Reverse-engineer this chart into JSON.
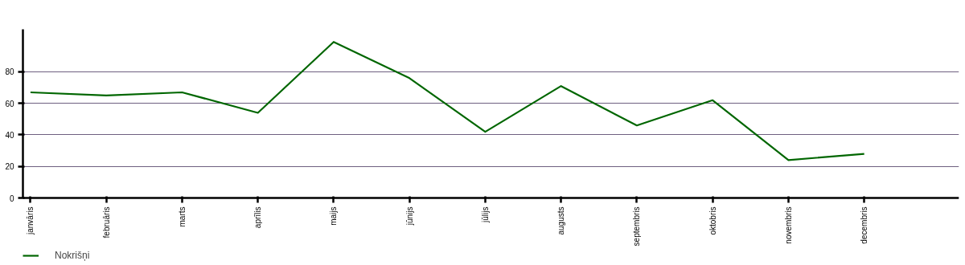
{
  "chart_data": {
    "type": "line",
    "categories": [
      "janvāris",
      "februāris",
      "marts",
      "aprīlis",
      "maijs",
      "jūnijs",
      "jūlijs",
      "augusts",
      "septembris",
      "oktobris",
      "novembris",
      "decembris"
    ],
    "series": [
      {
        "name": "Nokrišņi",
        "color": "#006600",
        "values": [
          67,
          65,
          67,
          54,
          99,
          76,
          42,
          71,
          46,
          62,
          24,
          28
        ]
      }
    ],
    "ylim": [
      0,
      107
    ],
    "yticks": [
      0,
      20,
      40,
      60,
      80
    ],
    "grid": "y",
    "legend": "bottom left",
    "marker": "none",
    "line_style": "solid"
  }
}
